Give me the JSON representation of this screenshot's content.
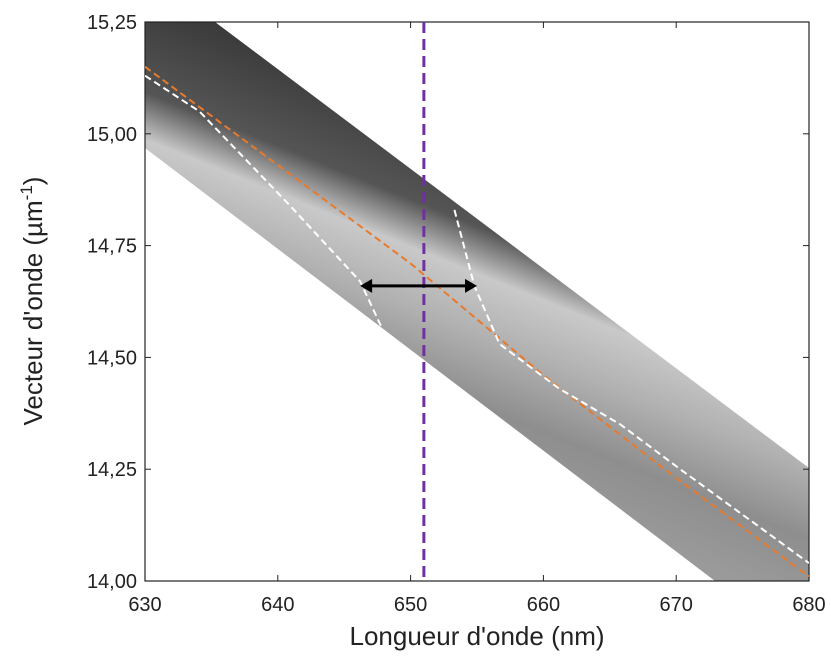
{
  "chart_data": {
    "type": "line",
    "x_label": "Longueur d'onde (nm)",
    "y_label": "Vecteur d'onde (µm",
    "y_label_sup": "-1",
    "y_label_end": ")",
    "xlim": [
      630,
      680
    ],
    "xticks": [
      630,
      640,
      650,
      660,
      670,
      680
    ],
    "ylim": [
      14.0,
      15.25
    ],
    "yticks": [
      {
        "value": 14.0,
        "label": "14,00"
      },
      {
        "value": 14.25,
        "label": "14,25"
      },
      {
        "value": 14.5,
        "label": "14,50"
      },
      {
        "value": 14.75,
        "label": "14,75"
      },
      {
        "value": 15.0,
        "label": "15,00"
      },
      {
        "value": 15.25,
        "label": "15,25"
      }
    ],
    "series": [
      {
        "color": "#e87a2c",
        "dash": true,
        "x": [
          630,
          650,
          660,
          670,
          680
        ],
        "values": [
          15.15,
          14.71,
          14.46,
          14.23,
          14.01
        ]
      },
      {
        "color": "#ffffff",
        "dash": true,
        "x": [
          630,
          634.1,
          640.9,
          646.2,
          648.4,
          null,
          653.3,
          654.8,
          656.7,
          661.2,
          665.8,
          670.3,
          680
        ],
        "values": [
          15.13,
          15.05,
          14.84,
          14.67,
          14.53,
          null,
          14.83,
          14.66,
          14.53,
          14.43,
          14.35,
          14.25,
          14.04
        ]
      }
    ],
    "vline": {
      "x": 651.0,
      "color": "#7030a0"
    },
    "arrow": {
      "x": [
        646.2,
        655.0
      ],
      "y": 14.66,
      "color": "#000000"
    }
  }
}
